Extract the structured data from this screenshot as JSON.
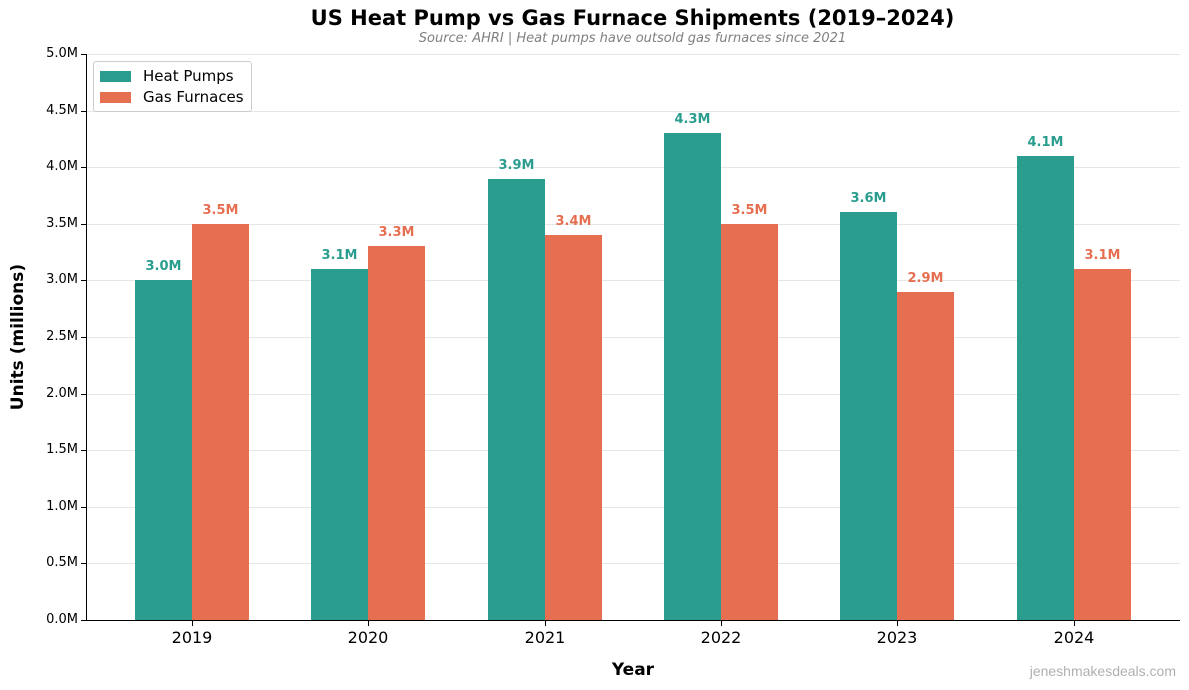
{
  "title": "US Heat Pump vs Gas Furnace Shipments (2019–2024)",
  "subtitle": "Source: AHRI | Heat pumps have outsold gas furnaces since 2021",
  "watermark": "jeneshmakesdeals.com",
  "colors": {
    "heat_pumps": "#2a9d8f",
    "gas_furnaces": "#e76f51"
  },
  "legend": [
    {
      "label": "Heat Pumps",
      "color": "#2a9d8f"
    },
    {
      "label": "Gas Furnaces",
      "color": "#e76f51"
    }
  ],
  "y_ticks": [
    "0.0M",
    "0.5M",
    "1.0M",
    "1.5M",
    "2.0M",
    "2.5M",
    "3.0M",
    "3.5M",
    "4.0M",
    "4.5M",
    "5.0M"
  ],
  "chart_data": {
    "type": "bar",
    "title": "US Heat Pump vs Gas Furnace Shipments (2019–2024)",
    "subtitle": "Source: AHRI | Heat pumps have outsold gas furnaces since 2021",
    "categories": [
      "2019",
      "2020",
      "2021",
      "2022",
      "2023",
      "2024"
    ],
    "series": [
      {
        "name": "Heat Pumps",
        "values": [
          3.0,
          3.1,
          3.9,
          4.3,
          3.6,
          4.1
        ],
        "labels": [
          "3.0M",
          "3.1M",
          "3.9M",
          "4.3M",
          "3.6M",
          "4.1M"
        ],
        "color": "#2a9d8f"
      },
      {
        "name": "Gas Furnaces",
        "values": [
          3.5,
          3.3,
          3.4,
          3.5,
          2.9,
          3.1
        ],
        "labels": [
          "3.5M",
          "3.3M",
          "3.4M",
          "3.5M",
          "2.9M",
          "3.1M"
        ],
        "color": "#e76f51"
      }
    ],
    "xlabel": "Year",
    "ylabel": "Units (millions)",
    "ylim": [
      0,
      5.0
    ],
    "y_tick_step": 0.5,
    "grid": "horizontal",
    "legend_position": "upper left"
  }
}
